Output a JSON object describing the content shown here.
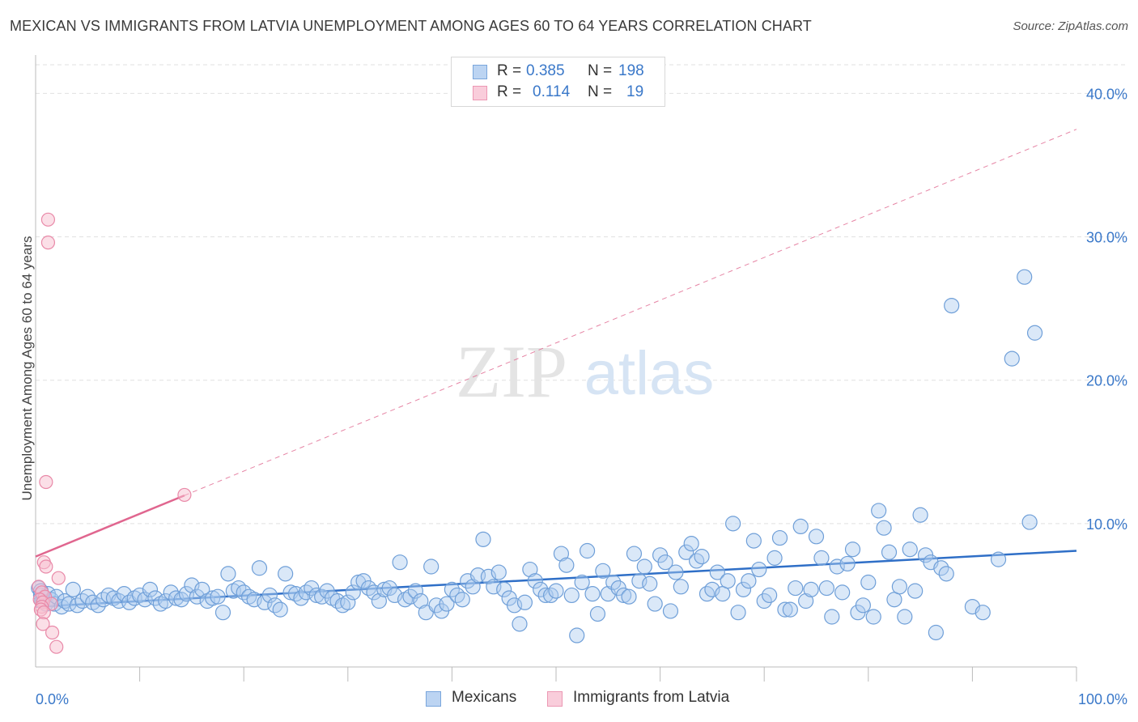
{
  "header": {
    "title": "MEXICAN VS IMMIGRANTS FROM LATVIA UNEMPLOYMENT AMONG AGES 60 TO 64 YEARS CORRELATION CHART",
    "source": "Source: ZipAtlas.com"
  },
  "watermark": {
    "zip": "ZIP",
    "atlas": "atlas"
  },
  "legend": {
    "rows": [
      {
        "r_label": "R =",
        "r_value": "0.385",
        "n_label": "N =",
        "n_value": "198"
      },
      {
        "r_label": "R =",
        "r_value": "0.114",
        "n_label": "N =",
        "n_value": "19"
      }
    ]
  },
  "bottom_legend": {
    "mexicans": "Mexicans",
    "latvia": "Immigrants from Latvia"
  },
  "colors": {
    "mexicans_fill": "#aecbf0",
    "mexicans_stroke": "#6f9fd8",
    "mexicans_line": "#2f6fc7",
    "latvia_fill": "#f7bfd0",
    "latvia_stroke": "#e989a8",
    "latvia_line": "#e0668f",
    "axis_text": "#3a78c9",
    "grid": "#e0e0e0"
  },
  "chart_data": {
    "type": "scatter",
    "title": "MEXICAN VS IMMIGRANTS FROM LATVIA UNEMPLOYMENT AMONG AGES 60 TO 64 YEARS CORRELATION CHART",
    "xlabel": "",
    "ylabel": "Unemployment Among Ages 60 to 64 years",
    "xlim": [
      0,
      100
    ],
    "ylim": [
      0,
      42
    ],
    "x_tick_labels": [
      "0.0%",
      "100.0%"
    ],
    "y_ticks": [
      10,
      20,
      30,
      40
    ],
    "y_tick_labels": [
      "10.0%",
      "20.0%",
      "30.0%",
      "40.0%"
    ],
    "grid": true,
    "legend_position": "top-center",
    "series": [
      {
        "name": "Mexicans",
        "R": 0.385,
        "N": 198,
        "trend": {
          "x": [
            0,
            100
          ],
          "y": [
            4.2,
            8.1
          ],
          "style": "solid"
        },
        "points": [
          [
            0.3,
            5.5
          ],
          [
            0.5,
            5.0
          ],
          [
            0.6,
            4.6
          ],
          [
            0.8,
            4.8
          ],
          [
            1.0,
            4.4
          ],
          [
            1.2,
            5.1
          ],
          [
            1.5,
            4.7
          ],
          [
            1.8,
            4.4
          ],
          [
            2.0,
            4.9
          ],
          [
            2.5,
            4.2
          ],
          [
            2.8,
            4.6
          ],
          [
            3.2,
            4.4
          ],
          [
            3.6,
            5.4
          ],
          [
            4.0,
            4.3
          ],
          [
            4.5,
            4.6
          ],
          [
            5.0,
            4.9
          ],
          [
            5.5,
            4.5
          ],
          [
            6.0,
            4.3
          ],
          [
            6.5,
            4.7
          ],
          [
            7.0,
            5.0
          ],
          [
            7.5,
            4.8
          ],
          [
            8.0,
            4.6
          ],
          [
            8.5,
            5.1
          ],
          [
            9.0,
            4.5
          ],
          [
            9.5,
            4.8
          ],
          [
            10.0,
            5.0
          ],
          [
            10.5,
            4.7
          ],
          [
            11.0,
            5.4
          ],
          [
            11.5,
            4.8
          ],
          [
            12.0,
            4.4
          ],
          [
            12.5,
            4.6
          ],
          [
            13.0,
            5.2
          ],
          [
            13.5,
            4.8
          ],
          [
            14.0,
            4.7
          ],
          [
            14.5,
            5.1
          ],
          [
            15.0,
            5.7
          ],
          [
            15.5,
            4.9
          ],
          [
            16.0,
            5.4
          ],
          [
            16.5,
            4.6
          ],
          [
            17.0,
            4.8
          ],
          [
            17.5,
            4.9
          ],
          [
            18.0,
            3.8
          ],
          [
            18.5,
            6.5
          ],
          [
            19.0,
            5.3
          ],
          [
            19.5,
            5.5
          ],
          [
            20.0,
            5.2
          ],
          [
            20.5,
            4.9
          ],
          [
            21.0,
            4.7
          ],
          [
            21.5,
            6.9
          ],
          [
            22.0,
            4.5
          ],
          [
            22.5,
            5.0
          ],
          [
            23.0,
            4.3
          ],
          [
            23.5,
            4.0
          ],
          [
            24.0,
            6.5
          ],
          [
            24.5,
            5.2
          ],
          [
            25.0,
            5.1
          ],
          [
            25.5,
            4.8
          ],
          [
            26.0,
            5.2
          ],
          [
            26.5,
            5.5
          ],
          [
            27.0,
            5.0
          ],
          [
            27.5,
            4.9
          ],
          [
            28.0,
            5.3
          ],
          [
            28.5,
            4.8
          ],
          [
            29.0,
            4.6
          ],
          [
            29.5,
            4.3
          ],
          [
            30.0,
            4.5
          ],
          [
            30.5,
            5.2
          ],
          [
            31.0,
            5.9
          ],
          [
            31.5,
            6.0
          ],
          [
            32.0,
            5.5
          ],
          [
            32.5,
            5.2
          ],
          [
            33.0,
            4.6
          ],
          [
            33.5,
            5.4
          ],
          [
            34.0,
            5.5
          ],
          [
            34.5,
            5.0
          ],
          [
            35.0,
            7.3
          ],
          [
            35.5,
            4.7
          ],
          [
            36.0,
            4.9
          ],
          [
            36.5,
            5.3
          ],
          [
            37.0,
            4.6
          ],
          [
            37.5,
            3.8
          ],
          [
            38.0,
            7.0
          ],
          [
            38.5,
            4.3
          ],
          [
            39.0,
            3.9
          ],
          [
            39.5,
            4.4
          ],
          [
            40.0,
            5.4
          ],
          [
            40.5,
            5.0
          ],
          [
            41.0,
            4.7
          ],
          [
            41.5,
            6.0
          ],
          [
            42.0,
            5.6
          ],
          [
            42.5,
            6.4
          ],
          [
            43.0,
            8.9
          ],
          [
            43.5,
            6.3
          ],
          [
            44.0,
            5.6
          ],
          [
            44.5,
            6.6
          ],
          [
            45.0,
            5.4
          ],
          [
            45.5,
            4.8
          ],
          [
            46.0,
            4.3
          ],
          [
            46.5,
            3.0
          ],
          [
            47.0,
            4.5
          ],
          [
            47.5,
            6.8
          ],
          [
            48.0,
            6.0
          ],
          [
            48.5,
            5.4
          ],
          [
            49.0,
            5.0
          ],
          [
            49.5,
            5.0
          ],
          [
            50.0,
            5.3
          ],
          [
            50.5,
            7.9
          ],
          [
            51.0,
            7.1
          ],
          [
            51.5,
            5.0
          ],
          [
            52.0,
            2.2
          ],
          [
            52.5,
            5.9
          ],
          [
            53.0,
            8.1
          ],
          [
            53.5,
            5.1
          ],
          [
            54.0,
            3.7
          ],
          [
            54.5,
            6.7
          ],
          [
            55.0,
            5.1
          ],
          [
            55.5,
            5.9
          ],
          [
            56.0,
            5.5
          ],
          [
            56.5,
            5.0
          ],
          [
            57.0,
            4.9
          ],
          [
            57.5,
            7.9
          ],
          [
            58.0,
            6.0
          ],
          [
            58.5,
            7.0
          ],
          [
            59.0,
            5.8
          ],
          [
            59.5,
            4.4
          ],
          [
            60.0,
            7.8
          ],
          [
            60.5,
            7.3
          ],
          [
            61.0,
            3.9
          ],
          [
            61.5,
            6.6
          ],
          [
            62.0,
            5.6
          ],
          [
            62.5,
            8.0
          ],
          [
            63.0,
            8.6
          ],
          [
            63.5,
            7.4
          ],
          [
            64.0,
            7.7
          ],
          [
            64.5,
            5.1
          ],
          [
            65.0,
            5.4
          ],
          [
            65.5,
            6.6
          ],
          [
            66.0,
            5.1
          ],
          [
            66.5,
            6.0
          ],
          [
            67.0,
            10.0
          ],
          [
            67.5,
            3.8
          ],
          [
            68.0,
            5.4
          ],
          [
            68.5,
            6.0
          ],
          [
            69.0,
            8.8
          ],
          [
            69.5,
            6.8
          ],
          [
            70.0,
            4.6
          ],
          [
            70.5,
            5.0
          ],
          [
            71.0,
            7.6
          ],
          [
            71.5,
            9.0
          ],
          [
            72.0,
            4.0
          ],
          [
            72.5,
            4.0
          ],
          [
            73.0,
            5.5
          ],
          [
            73.5,
            9.8
          ],
          [
            74.0,
            4.6
          ],
          [
            74.5,
            5.4
          ],
          [
            75.0,
            9.1
          ],
          [
            75.5,
            7.6
          ],
          [
            76.0,
            5.5
          ],
          [
            76.5,
            3.5
          ],
          [
            77.0,
            7.0
          ],
          [
            77.5,
            5.2
          ],
          [
            78.0,
            7.2
          ],
          [
            78.5,
            8.2
          ],
          [
            79.0,
            3.8
          ],
          [
            79.5,
            4.3
          ],
          [
            80.0,
            5.9
          ],
          [
            80.5,
            3.5
          ],
          [
            81.0,
            10.9
          ],
          [
            81.5,
            9.7
          ],
          [
            82.0,
            8.0
          ],
          [
            82.5,
            4.7
          ],
          [
            83.0,
            5.6
          ],
          [
            83.5,
            3.5
          ],
          [
            84.0,
            8.2
          ],
          [
            84.5,
            5.3
          ],
          [
            85.0,
            10.6
          ],
          [
            85.5,
            7.8
          ],
          [
            86.0,
            7.3
          ],
          [
            86.5,
            2.4
          ],
          [
            87.0,
            6.9
          ],
          [
            87.5,
            6.5
          ],
          [
            88.0,
            25.2
          ],
          [
            95.0,
            27.2
          ],
          [
            93.8,
            21.5
          ],
          [
            96.0,
            23.3
          ],
          [
            95.5,
            10.1
          ],
          [
            92.5,
            7.5
          ],
          [
            90.0,
            4.2
          ],
          [
            91.0,
            3.8
          ],
          [
            0.5,
            5.3
          ]
        ]
      },
      {
        "name": "Immigrants from Latvia",
        "R": 0.114,
        "N": 19,
        "trend": {
          "x": [
            0,
            100
          ],
          "y": [
            7.7,
            37.5
          ],
          "style": "solid 0-14, dashed beyond"
        },
        "points": [
          [
            1.2,
            31.2
          ],
          [
            1.2,
            29.6
          ],
          [
            1.0,
            12.9
          ],
          [
            14.3,
            12.0
          ],
          [
            0.8,
            7.3
          ],
          [
            1.0,
            7.0
          ],
          [
            2.2,
            6.2
          ],
          [
            0.3,
            5.6
          ],
          [
            0.6,
            5.2
          ],
          [
            0.9,
            4.9
          ],
          [
            0.4,
            4.7
          ],
          [
            0.7,
            4.5
          ],
          [
            1.5,
            4.4
          ],
          [
            0.6,
            4.2
          ],
          [
            0.5,
            4.0
          ],
          [
            0.8,
            3.8
          ],
          [
            0.7,
            3.0
          ],
          [
            1.6,
            2.4
          ],
          [
            2.0,
            1.4
          ]
        ]
      }
    ]
  }
}
